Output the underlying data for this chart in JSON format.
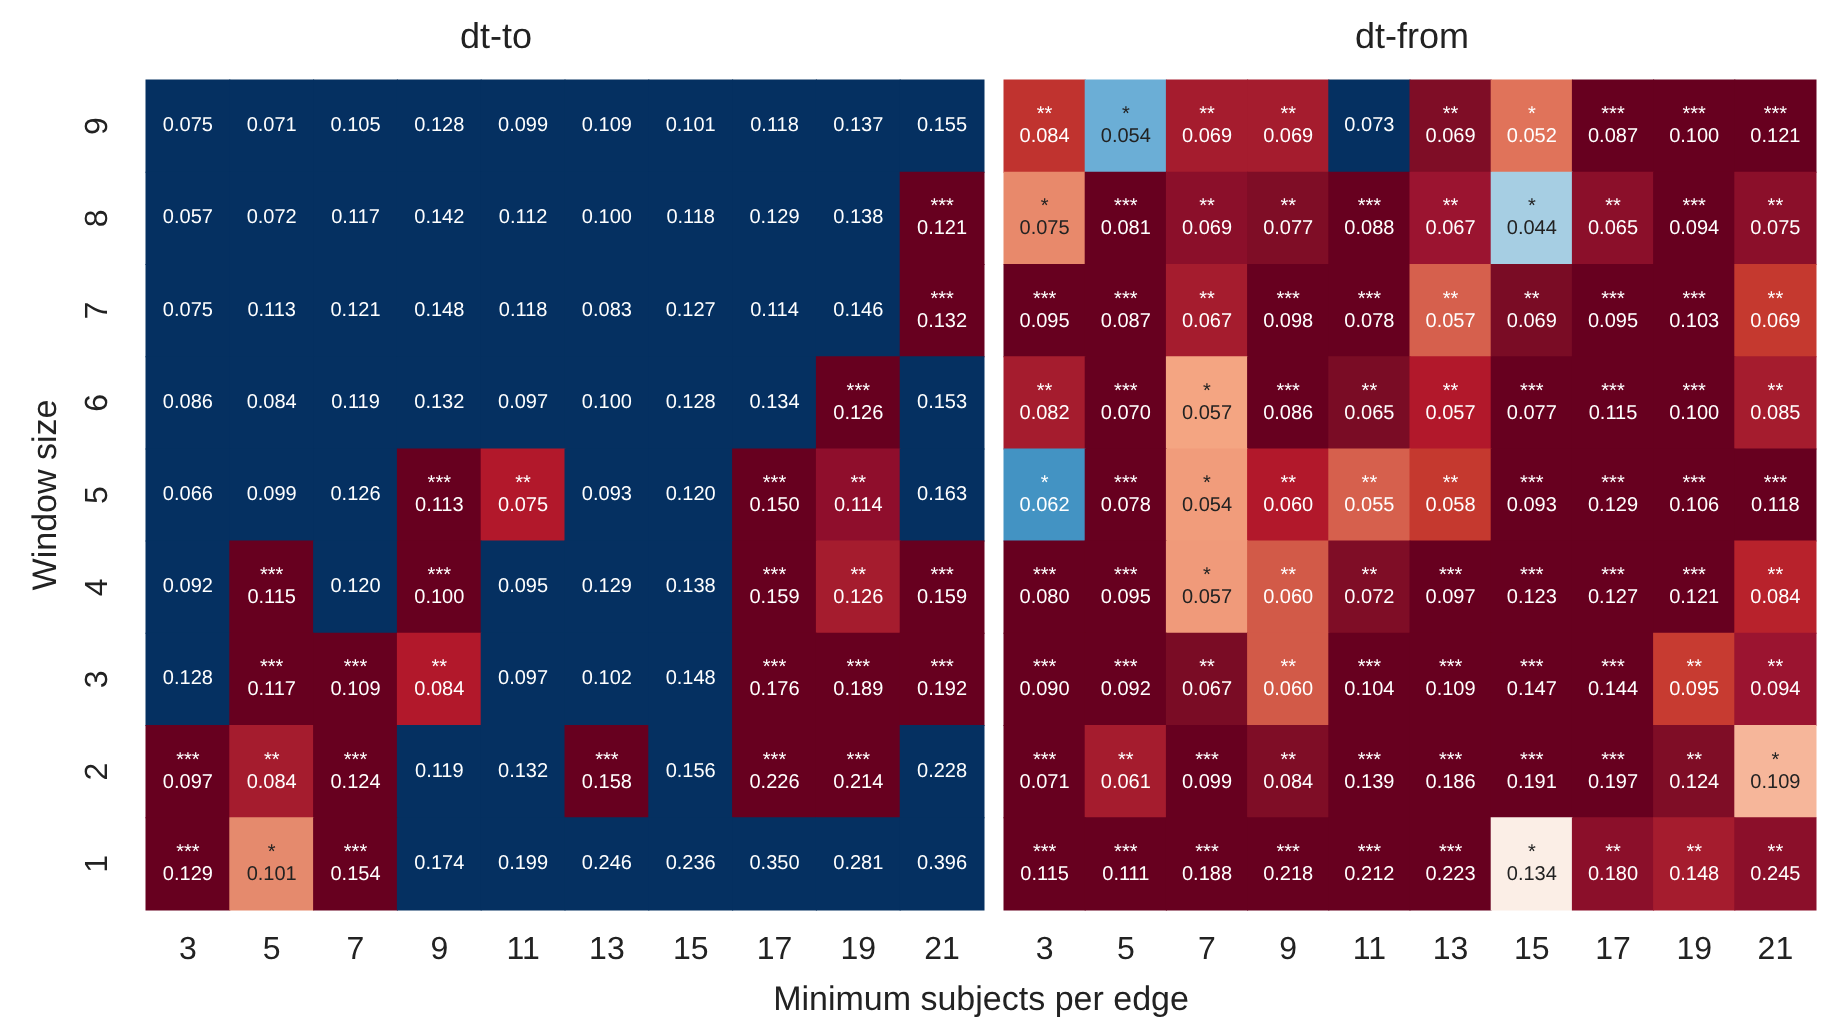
{
  "chart_data": [
    {
      "type": "heatmap",
      "title": "dt-to",
      "xlabel": "Minimum subjects per edge",
      "ylabel": "Window size",
      "categories": [
        "3",
        "5",
        "7",
        "9",
        "11",
        "13",
        "15",
        "17",
        "19",
        "21"
      ],
      "y_categories": [
        "9",
        "8",
        "7",
        "6",
        "5",
        "4",
        "3",
        "2",
        "1"
      ],
      "cells": [
        [
          0.075,
          0.071,
          0.105,
          0.128,
          0.099,
          0.109,
          0.101,
          0.118,
          0.137,
          0.155
        ],
        [
          0.057,
          0.072,
          0.117,
          0.142,
          0.112,
          0.1,
          0.118,
          0.129,
          0.138,
          0.121
        ],
        [
          0.075,
          0.113,
          0.121,
          0.148,
          0.118,
          0.083,
          0.127,
          0.114,
          0.146,
          0.132
        ],
        [
          0.086,
          0.084,
          0.119,
          0.132,
          0.097,
          0.1,
          0.128,
          0.134,
          0.126,
          0.153
        ],
        [
          0.066,
          0.099,
          0.126,
          0.113,
          0.075,
          0.093,
          0.12,
          0.15,
          0.114,
          0.163
        ],
        [
          0.092,
          0.115,
          0.12,
          0.1,
          0.095,
          0.129,
          0.138,
          0.159,
          0.126,
          0.159
        ],
        [
          0.128,
          0.117,
          0.109,
          0.084,
          0.097,
          0.102,
          0.148,
          0.176,
          0.189,
          0.192
        ],
        [
          0.097,
          0.084,
          0.124,
          0.119,
          0.132,
          0.158,
          0.156,
          0.226,
          0.214,
          0.228
        ],
        [
          0.129,
          0.101,
          0.154,
          0.174,
          0.199,
          0.246,
          0.236,
          0.35,
          0.281,
          0.396
        ]
      ],
      "cell_labels": [
        [
          "0.075",
          "0.071",
          "0.105",
          "0.128",
          "0.099",
          "0.109",
          "0.101",
          "0.118",
          "0.137",
          "0.155"
        ],
        [
          "0.057",
          "0.072",
          "0.117",
          "0.142",
          "0.112",
          "0.100",
          "0.118",
          "0.129",
          "0.138",
          "***\n0.121"
        ],
        [
          "0.075",
          "0.113",
          "0.121",
          "0.148",
          "0.118",
          "0.083",
          "0.127",
          "0.114",
          "0.146",
          "***\n0.132"
        ],
        [
          "0.086",
          "0.084",
          "0.119",
          "0.132",
          "0.097",
          "0.100",
          "0.128",
          "0.134",
          "***\n0.126",
          "0.153"
        ],
        [
          "0.066",
          "0.099",
          "0.126",
          "***\n0.113",
          "**\n0.075",
          "0.093",
          "0.120",
          "***\n0.150",
          "**\n0.114",
          "0.163"
        ],
        [
          "0.092",
          "***\n0.115",
          "0.120",
          "***\n0.100",
          "0.095",
          "0.129",
          "0.138",
          "***\n0.159",
          "**\n0.126",
          "***\n0.159"
        ],
        [
          "0.128",
          "***\n0.117",
          "***\n0.109",
          "**\n0.084",
          "0.097",
          "0.102",
          "0.148",
          "***\n0.176",
          "***\n0.189",
          "***\n0.192"
        ],
        [
          "***\n0.097",
          "**\n0.084",
          "***\n0.124",
          "0.119",
          "0.132",
          "***\n0.158",
          "0.156",
          "***\n0.226",
          "***\n0.214",
          "0.228"
        ],
        [
          "***\n0.129",
          "*\n0.101",
          "***\n0.154",
          "0.174",
          "0.199",
          "0.246",
          "0.236",
          "0.350",
          "0.281",
          "0.396"
        ]
      ],
      "colors": [
        [
          "#053061",
          "#053061",
          "#053061",
          "#053061",
          "#053061",
          "#053061",
          "#053061",
          "#053061",
          "#053061",
          "#053061"
        ],
        [
          "#053061",
          "#053061",
          "#053061",
          "#053061",
          "#053061",
          "#053061",
          "#053061",
          "#053061",
          "#053061",
          "#67001f"
        ],
        [
          "#053061",
          "#053061",
          "#053061",
          "#053061",
          "#053061",
          "#053061",
          "#053061",
          "#053061",
          "#053061",
          "#67001f"
        ],
        [
          "#053061",
          "#053061",
          "#053061",
          "#053061",
          "#053061",
          "#053061",
          "#053061",
          "#053061",
          "#67001f",
          "#053061"
        ],
        [
          "#053061",
          "#053061",
          "#053061",
          "#67001f",
          "#b2182b",
          "#053061",
          "#053061",
          "#67001f",
          "#8f0e2c",
          "#053061"
        ],
        [
          "#053061",
          "#67001f",
          "#053061",
          "#67001f",
          "#053061",
          "#053061",
          "#053061",
          "#67001f",
          "#a51c2e",
          "#67001f"
        ],
        [
          "#053061",
          "#67001f",
          "#67001f",
          "#b2182b",
          "#053061",
          "#053061",
          "#053061",
          "#67001f",
          "#67001f",
          "#67001f"
        ],
        [
          "#67001f",
          "#a51c2e",
          "#67001f",
          "#053061",
          "#053061",
          "#67001f",
          "#053061",
          "#67001f",
          "#67001f",
          "#053061"
        ],
        [
          "#67001f",
          "#e58a6d",
          "#67001f",
          "#053061",
          "#053061",
          "#053061",
          "#053061",
          "#053061",
          "#053061",
          "#053061"
        ]
      ]
    },
    {
      "type": "heatmap",
      "title": "dt-from",
      "tick_labels": "x",
      "categories": [
        "3",
        "5",
        "7",
        "9",
        "11",
        "13",
        "15",
        "17",
        "19",
        "21"
      ],
      "y_categories": [
        "9",
        "8",
        "7",
        "6",
        "5",
        "4",
        "3",
        "2",
        "1"
      ],
      "cells": [
        [
          0.084,
          0.054,
          0.069,
          0.069,
          0.073,
          0.069,
          0.052,
          0.087,
          0.1,
          0.121
        ],
        [
          0.075,
          0.081,
          0.069,
          0.077,
          0.088,
          0.067,
          0.044,
          0.065,
          0.094,
          0.075
        ],
        [
          0.095,
          0.087,
          0.067,
          0.098,
          0.078,
          0.057,
          0.069,
          0.095,
          0.103,
          0.069
        ],
        [
          0.082,
          0.07,
          0.057,
          0.086,
          0.065,
          0.057,
          0.077,
          0.115,
          0.1,
          0.085
        ],
        [
          0.062,
          0.078,
          0.054,
          0.06,
          0.055,
          0.058,
          0.093,
          0.129,
          0.106,
          0.118
        ],
        [
          0.08,
          0.095,
          0.057,
          0.06,
          0.072,
          0.097,
          0.123,
          0.127,
          0.121,
          0.084
        ],
        [
          0.09,
          0.092,
          0.067,
          0.06,
          0.104,
          0.109,
          0.147,
          0.144,
          0.095,
          0.094
        ],
        [
          0.071,
          0.061,
          0.099,
          0.084,
          0.139,
          0.186,
          0.191,
          0.197,
          0.124,
          0.109
        ],
        [
          0.115,
          0.111,
          0.188,
          0.218,
          0.212,
          0.223,
          0.134,
          0.18,
          0.148,
          0.245
        ]
      ],
      "cell_labels": [
        [
          "**\n0.084",
          "*\n0.054",
          "**\n0.069",
          "**\n0.069",
          "0.073",
          "**\n0.069",
          "*\n0.052",
          "***\n0.087",
          "***\n0.100",
          "***\n0.121"
        ],
        [
          "*\n0.075",
          "***\n0.081",
          "**\n0.069",
          "**\n0.077",
          "***\n0.088",
          "**\n0.067",
          "*\n0.044",
          "**\n0.065",
          "***\n0.094",
          "**\n0.075"
        ],
        [
          "***\n0.095",
          "***\n0.087",
          "**\n0.067",
          "***\n0.098",
          "***\n0.078",
          "**\n0.057",
          "**\n0.069",
          "***\n0.095",
          "***\n0.103",
          "**\n0.069"
        ],
        [
          "**\n0.082",
          "***\n0.070",
          "*\n0.057",
          "***\n0.086",
          "**\n0.065",
          "**\n0.057",
          "***\n0.077",
          "***\n0.115",
          "***\n0.100",
          "**\n0.085"
        ],
        [
          "*\n0.062",
          "***\n0.078",
          "*\n0.054",
          "**\n0.060",
          "**\n0.055",
          "**\n0.058",
          "***\n0.093",
          "***\n0.129",
          "***\n0.106",
          "***\n0.118"
        ],
        [
          "***\n0.080",
          "***\n0.095",
          "*\n0.057",
          "**\n0.060",
          "**\n0.072",
          "***\n0.097",
          "***\n0.123",
          "***\n0.127",
          "***\n0.121",
          "**\n0.084"
        ],
        [
          "***\n0.090",
          "***\n0.092",
          "**\n0.067",
          "**\n0.060",
          "***\n0.104",
          "***\n0.109",
          "***\n0.147",
          "***\n0.144",
          "**\n0.095",
          "**\n0.094"
        ],
        [
          "***\n0.071",
          "**\n0.061",
          "***\n0.099",
          "**\n0.084",
          "***\n0.139",
          "***\n0.186",
          "***\n0.191",
          "***\n0.197",
          "**\n0.124",
          "*\n0.109"
        ],
        [
          "***\n0.115",
          "***\n0.111",
          "***\n0.188",
          "***\n0.218",
          "***\n0.212",
          "***\n0.223",
          "*\n0.134",
          "**\n0.180",
          "**\n0.148",
          "**\n0.245"
        ]
      ],
      "colors": [
        [
          "#c0332f",
          "#6baed6",
          "#a51c2e",
          "#a51c2e",
          "#053061",
          "#7f0d26",
          "#e0735a",
          "#67001f",
          "#67001f",
          "#67001f"
        ],
        [
          "#e8896b",
          "#67001f",
          "#8b0f2a",
          "#7f0d26",
          "#67001f",
          "#9b1430",
          "#a6cee3",
          "#8b0f2a",
          "#67001f",
          "#8b0f2a"
        ],
        [
          "#67001f",
          "#67001f",
          "#a51c2e",
          "#67001f",
          "#67001f",
          "#d6604d",
          "#7a0c25",
          "#67001f",
          "#67001f",
          "#c5392f"
        ],
        [
          "#a51c2e",
          "#67001f",
          "#f4a582",
          "#67001f",
          "#7a0c25",
          "#b2182b",
          "#67001f",
          "#67001f",
          "#67001f",
          "#a51c2e"
        ],
        [
          "#4393c3",
          "#67001f",
          "#f19c7b",
          "#b2182b",
          "#d6604d",
          "#c5392f",
          "#67001f",
          "#67001f",
          "#67001f",
          "#67001f"
        ],
        [
          "#67001f",
          "#67001f",
          "#f09a7a",
          "#d25a48",
          "#7f0d26",
          "#67001f",
          "#67001f",
          "#67001f",
          "#67001f",
          "#b8222c"
        ],
        [
          "#67001f",
          "#67001f",
          "#7a0c25",
          "#d25a48",
          "#67001f",
          "#67001f",
          "#67001f",
          "#67001f",
          "#c73b31",
          "#9b1430"
        ],
        [
          "#67001f",
          "#a51c2e",
          "#67001f",
          "#7f0d26",
          "#67001f",
          "#67001f",
          "#67001f",
          "#67001f",
          "#7f0d26",
          "#f6b69a"
        ],
        [
          "#67001f",
          "#67001f",
          "#67001f",
          "#67001f",
          "#67001f",
          "#67001f",
          "#fbeee6",
          "#8b0f2a",
          "#a51c2e",
          "#8b0f2a"
        ]
      ]
    }
  ]
}
